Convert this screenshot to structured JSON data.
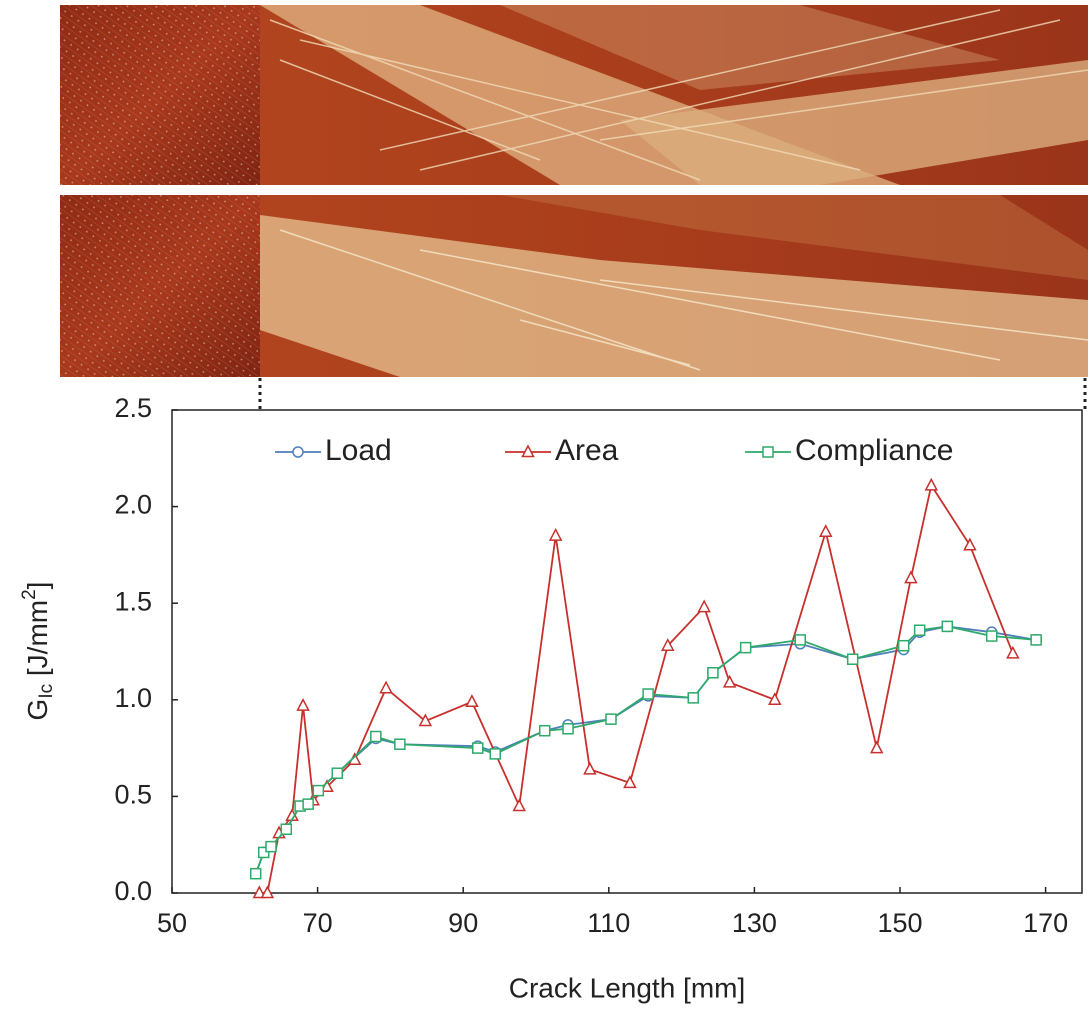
{
  "chart_data": {
    "type": "line",
    "xlabel": "Crack Length [mm]",
    "ylabel": [
      "G",
      "Ic",
      " [J/mm",
      "2",
      "]"
    ],
    "xlim": [
      50,
      175
    ],
    "ylim": [
      0,
      2.5
    ],
    "xticks": [
      50,
      70,
      90,
      110,
      130,
      150,
      170
    ],
    "yticks": [
      {
        "value": 0,
        "label": "0.0"
      },
      0.5,
      {
        "value": 1,
        "label": "1.0"
      },
      1.5,
      {
        "value": 2,
        "label": "2.0"
      },
      2.5
    ],
    "grid": false,
    "legend": "top",
    "series": [
      {
        "name": "Load",
        "color": "#4f7fba",
        "marker": "circle",
        "x": [
          61.5,
          62.6,
          63.6,
          65.7,
          67.6,
          68.7,
          70.1,
          72.7,
          78.0,
          81.3,
          92.0,
          94.4,
          101.2,
          104.4,
          110.3,
          115.4,
          121.6,
          124.3,
          128.8,
          136.3,
          143.5,
          150.5,
          152.7,
          156.5,
          162.6,
          168.7
        ],
        "values": [
          0.1,
          0.21,
          0.24,
          0.33,
          0.45,
          0.46,
          0.53,
          0.62,
          0.8,
          0.77,
          0.76,
          0.73,
          0.84,
          0.87,
          0.9,
          1.02,
          1.01,
          1.14,
          1.27,
          1.29,
          1.21,
          1.26,
          1.35,
          1.38,
          1.35,
          1.31
        ]
      },
      {
        "name": "Area",
        "color": "#c7302c",
        "marker": "triangle",
        "x": [
          62.0,
          63.1,
          64.7,
          66.5,
          68.0,
          69.4,
          71.3,
          75.1,
          79.4,
          84.8,
          91.2,
          97.7,
          102.7,
          107.4,
          112.9,
          118.1,
          123.1,
          126.6,
          132.8,
          139.8,
          146.8,
          151.5,
          154.3,
          159.6,
          165.5
        ],
        "values": [
          0.0,
          0.0,
          0.31,
          0.4,
          0.97,
          0.48,
          0.55,
          0.69,
          1.06,
          0.89,
          0.99,
          0.45,
          1.85,
          0.64,
          0.57,
          1.28,
          1.48,
          1.09,
          1.0,
          1.87,
          0.75,
          1.63,
          2.11,
          1.8,
          1.24
        ]
      },
      {
        "name": "Compliance",
        "color": "#2eaa6a",
        "marker": "square",
        "x": [
          61.5,
          62.6,
          63.6,
          65.7,
          67.6,
          68.7,
          70.1,
          72.7,
          78.0,
          81.3,
          92.0,
          94.4,
          101.2,
          104.4,
          110.3,
          115.4,
          121.6,
          124.3,
          128.8,
          136.3,
          143.5,
          150.5,
          152.7,
          156.5,
          162.6,
          168.7
        ],
        "values": [
          0.1,
          0.21,
          0.24,
          0.33,
          0.45,
          0.46,
          0.53,
          0.62,
          0.81,
          0.77,
          0.75,
          0.72,
          0.84,
          0.85,
          0.9,
          1.03,
          1.01,
          1.14,
          1.27,
          1.31,
          1.21,
          1.28,
          1.36,
          1.38,
          1.33,
          1.31
        ]
      }
    ]
  }
}
